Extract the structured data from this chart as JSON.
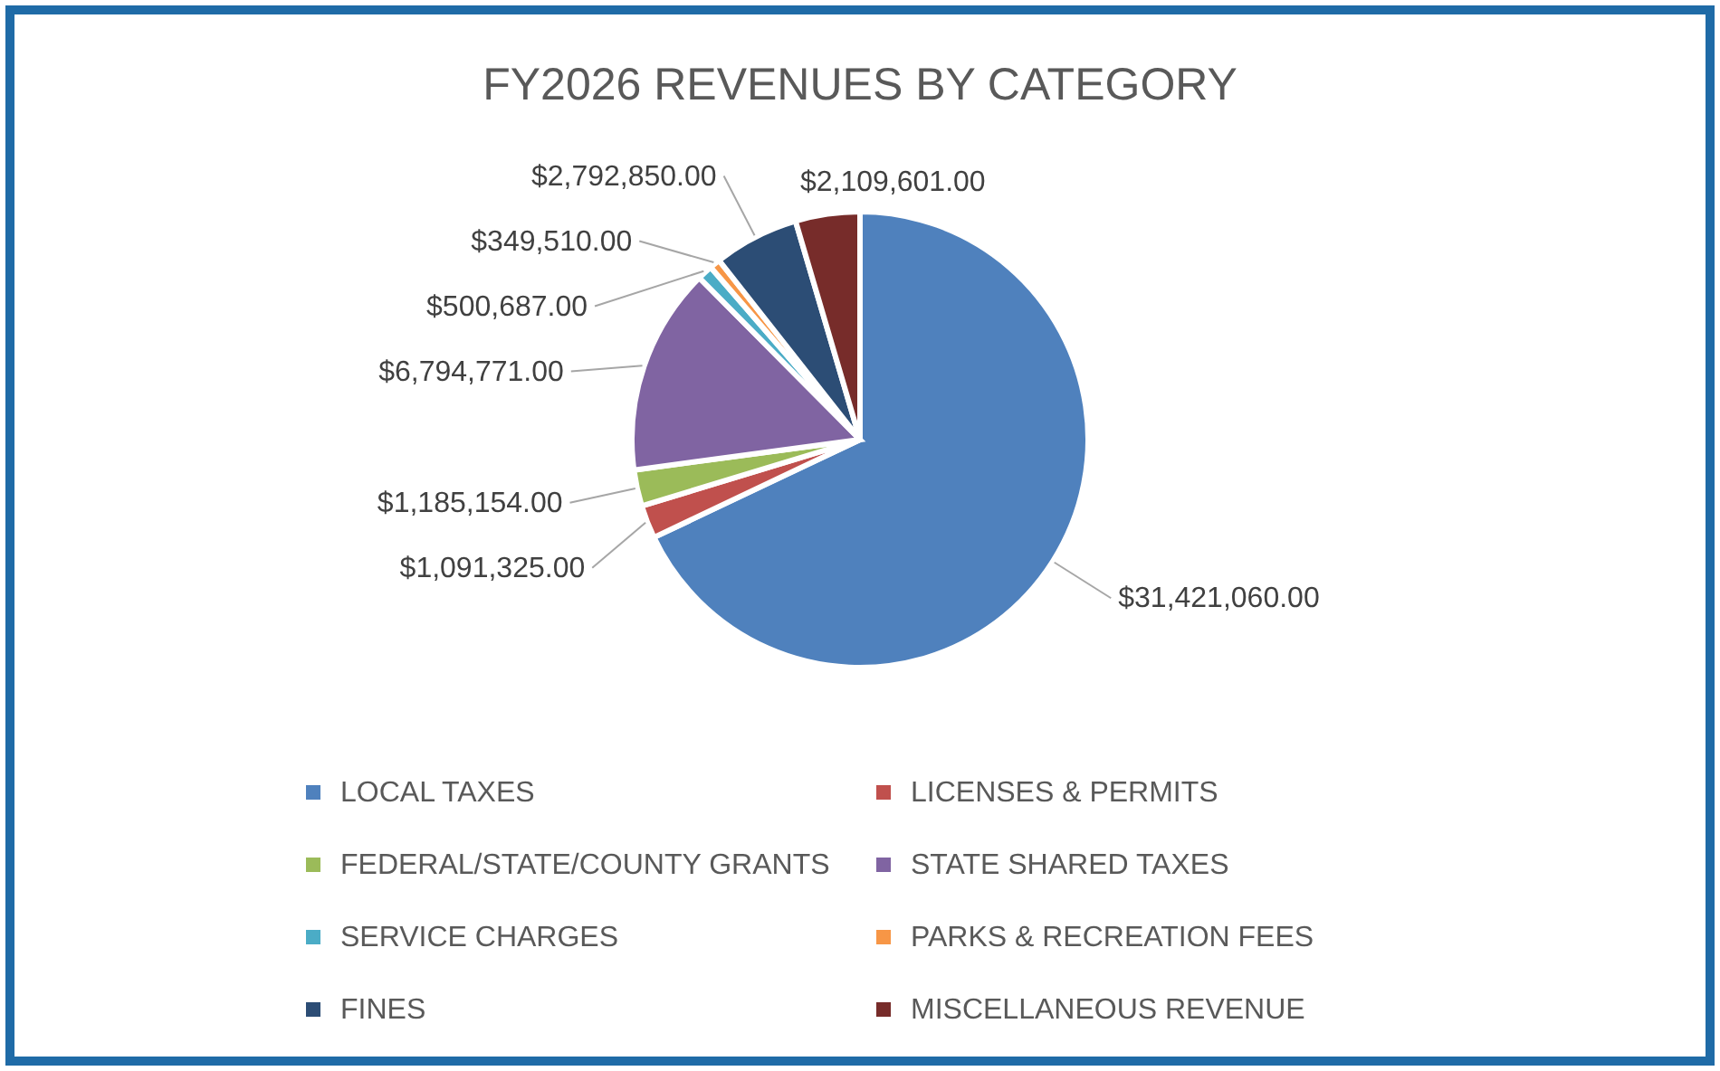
{
  "chart_data": {
    "type": "pie",
    "title": "FY2026 REVENUES BY CATEGORY",
    "categories": [
      "LOCAL TAXES",
      "LICENSES & PERMITS",
      "FEDERAL/STATE/COUNTY GRANTS",
      "STATE SHARED TAXES",
      "SERVICE CHARGES",
      "PARKS & RECREATION FEES",
      "FINES",
      "MISCELLANEOUS REVENUE"
    ],
    "values": [
      31421060,
      1091325,
      1185154,
      6794771,
      500687,
      349510,
      2792850,
      2109601
    ],
    "colors": [
      "#4f81bd",
      "#c0504d",
      "#9bbb59",
      "#8064a2",
      "#4bacc6",
      "#f79646",
      "#2c4d75",
      "#772c2a"
    ],
    "value_labels": [
      "$31,421,060.00",
      "$1,091,325.00",
      "$1,185,154.00",
      "$6,794,771.00",
      "$500,687.00",
      "$349,510.00",
      "$2,792,850.00",
      "$2,109,601.00"
    ],
    "legend": "bottom"
  }
}
